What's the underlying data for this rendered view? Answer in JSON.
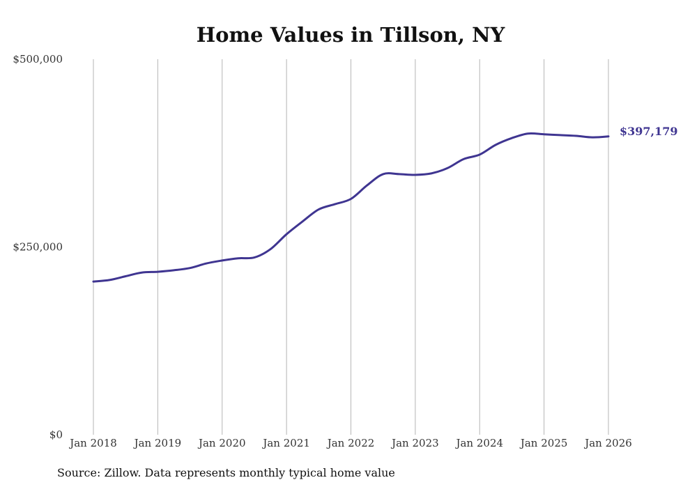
{
  "chart_data": {
    "type": "line",
    "title": "Home Values in Tillson, NY",
    "xlabel": "",
    "ylabel": "",
    "ylim": [
      0,
      500000
    ],
    "x_start": 2018,
    "x_end": 2026,
    "y_ticks": [
      {
        "value": 0,
        "label": "$0"
      },
      {
        "value": 250000,
        "label": "$250,000"
      },
      {
        "value": 500000,
        "label": "$500,000"
      }
    ],
    "x_ticks": [
      {
        "value": 2018,
        "label": "Jan 2018"
      },
      {
        "value": 2019,
        "label": "Jan 2019"
      },
      {
        "value": 2020,
        "label": "Jan 2020"
      },
      {
        "value": 2021,
        "label": "Jan 2021"
      },
      {
        "value": 2022,
        "label": "Jan 2022"
      },
      {
        "value": 2023,
        "label": "Jan 2023"
      },
      {
        "value": 2024,
        "label": "Jan 2024"
      },
      {
        "value": 2025,
        "label": "Jan 2025"
      },
      {
        "value": 2026,
        "label": "Jan 2026"
      }
    ],
    "grid": "vertical",
    "series": [
      {
        "name": "Typical home value",
        "color": "#3f3591",
        "end_label": "$397,179",
        "x": [
          2018.0,
          2018.25,
          2018.5,
          2018.75,
          2019.0,
          2019.25,
          2019.5,
          2019.75,
          2020.0,
          2020.25,
          2020.5,
          2020.75,
          2021.0,
          2021.25,
          2021.5,
          2021.75,
          2022.0,
          2022.25,
          2022.5,
          2022.75,
          2023.0,
          2023.25,
          2023.5,
          2023.75,
          2024.0,
          2024.25,
          2024.5,
          2024.75,
          2025.0,
          2025.25,
          2025.5,
          2025.75,
          2026.0
        ],
        "values": [
          204000,
          206000,
          211000,
          216000,
          217000,
          219000,
          222000,
          228000,
          232000,
          235000,
          236000,
          247000,
          267000,
          284000,
          300000,
          307000,
          314000,
          332000,
          347000,
          347000,
          346000,
          348000,
          355000,
          367000,
          373000,
          386000,
          395000,
          401000,
          400000,
          399000,
          398000,
          396000,
          397179
        ]
      }
    ]
  },
  "footer": {
    "source": "Source: Zillow. Data represents monthly typical home value"
  }
}
